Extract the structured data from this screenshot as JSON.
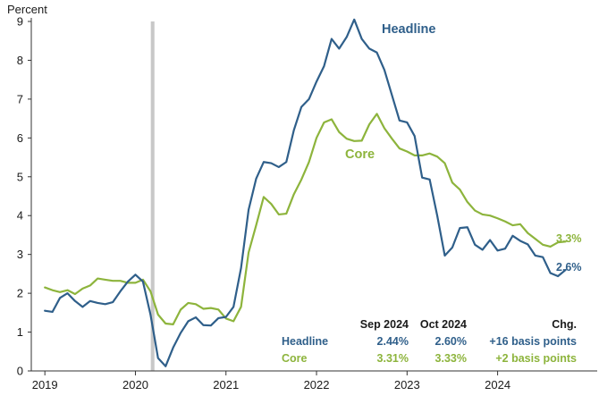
{
  "colors": {
    "headline": "#2f5f8a",
    "core": "#8db43c",
    "recession": "#c8c8c8",
    "axis": "#333333",
    "text": "#1a1a1a"
  },
  "chart_data": {
    "type": "line",
    "title": "",
    "ylabel": "Percent",
    "xlabel": "",
    "ylim": [
      0,
      9
    ],
    "yticks": [
      "0",
      "1",
      "2",
      "3",
      "4",
      "5",
      "6",
      "7",
      "8",
      "9"
    ],
    "xlim": [
      2018.85,
      2025.1
    ],
    "xticks": [
      {
        "label": "2019",
        "value": 2019.0
      },
      {
        "label": "2020",
        "value": 2020.0
      },
      {
        "label": "2021",
        "value": 2021.0
      },
      {
        "label": "2022",
        "value": 2022.0
      },
      {
        "label": "2023",
        "value": 2023.0
      },
      {
        "label": "2024",
        "value": 2024.0
      }
    ],
    "recession_band": {
      "start": 2020.17,
      "end": 2020.21
    },
    "series": [
      {
        "name": "Headline",
        "label": "Headline",
        "end_label": "2.6%",
        "x_start": 2019.0,
        "x_step": 0.08333,
        "values": [
          1.55,
          1.52,
          1.88,
          2.0,
          1.8,
          1.65,
          1.8,
          1.75,
          1.72,
          1.77,
          2.05,
          2.3,
          2.48,
          2.3,
          1.45,
          0.33,
          0.12,
          0.6,
          0.98,
          1.28,
          1.38,
          1.18,
          1.17,
          1.36,
          1.39,
          1.65,
          2.65,
          4.15,
          4.95,
          5.38,
          5.35,
          5.25,
          5.38,
          6.2,
          6.8,
          7.0,
          7.45,
          7.85,
          8.55,
          8.3,
          8.6,
          9.05,
          8.55,
          8.3,
          8.2,
          7.75,
          7.1,
          6.45,
          6.4,
          6.05,
          4.98,
          4.93,
          4.0,
          2.97,
          3.18,
          3.68,
          3.7,
          3.25,
          3.12,
          3.37,
          3.1,
          3.15,
          3.48,
          3.35,
          3.26,
          2.97,
          2.93,
          2.52,
          2.44,
          2.6
        ]
      },
      {
        "name": "Core",
        "label": "Core",
        "end_label": "3.3%",
        "x_start": 2019.0,
        "x_step": 0.08333,
        "values": [
          2.15,
          2.08,
          2.03,
          2.08,
          1.98,
          2.12,
          2.2,
          2.38,
          2.35,
          2.32,
          2.32,
          2.27,
          2.27,
          2.35,
          2.05,
          1.45,
          1.22,
          1.2,
          1.58,
          1.75,
          1.72,
          1.6,
          1.62,
          1.58,
          1.35,
          1.28,
          1.65,
          3.05,
          3.75,
          4.48,
          4.3,
          4.03,
          4.05,
          4.55,
          4.93,
          5.38,
          6.0,
          6.4,
          6.48,
          6.15,
          5.98,
          5.92,
          5.93,
          6.35,
          6.62,
          6.25,
          5.98,
          5.73,
          5.65,
          5.55,
          5.55,
          5.6,
          5.52,
          5.35,
          4.85,
          4.67,
          4.35,
          4.13,
          4.03,
          4.0,
          3.93,
          3.85,
          3.75,
          3.78,
          3.55,
          3.4,
          3.25,
          3.2,
          3.31,
          3.33
        ]
      }
    ],
    "table": {
      "columns": [
        "",
        "Sep 2024",
        "Oct 2024",
        "Chg."
      ],
      "rows": [
        {
          "name": "Headline",
          "sep": "2.44%",
          "oct": "2.60%",
          "chg": "+16 basis points"
        },
        {
          "name": "Core",
          "sep": "3.31%",
          "oct": "3.33%",
          "chg": "+2 basis points"
        }
      ]
    }
  }
}
